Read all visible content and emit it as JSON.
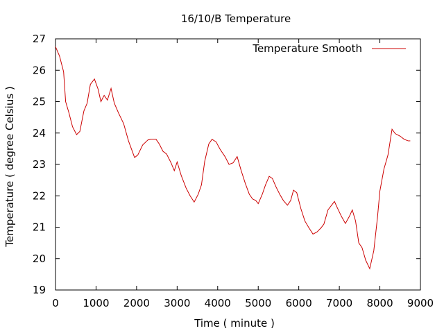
{
  "chart_data": {
    "type": "line",
    "title": "16/10/B Temperature",
    "xlabel": "Time ( minute )",
    "ylabel": "Temperature ( degree Celsius )",
    "xlim": [
      0,
      9000
    ],
    "ylim": [
      19,
      27
    ],
    "xticks": [
      0,
      1000,
      2000,
      3000,
      4000,
      5000,
      6000,
      7000,
      8000,
      9000
    ],
    "yticks": [
      19,
      20,
      21,
      22,
      23,
      24,
      25,
      26,
      27
    ],
    "grid": false,
    "legend_position": "top-right",
    "series": [
      {
        "name": "Temperature Smooth",
        "color": "#cc0000",
        "points": [
          [
            0,
            26.75
          ],
          [
            100,
            26.45
          ],
          [
            200,
            25.95
          ],
          [
            250,
            25.0
          ],
          [
            330,
            24.65
          ],
          [
            420,
            24.2
          ],
          [
            520,
            23.95
          ],
          [
            600,
            24.05
          ],
          [
            700,
            24.7
          ],
          [
            780,
            24.95
          ],
          [
            860,
            25.55
          ],
          [
            960,
            25.72
          ],
          [
            1050,
            25.4
          ],
          [
            1120,
            25.0
          ],
          [
            1200,
            25.2
          ],
          [
            1280,
            25.05
          ],
          [
            1370,
            25.42
          ],
          [
            1450,
            24.95
          ],
          [
            1550,
            24.65
          ],
          [
            1680,
            24.3
          ],
          [
            1800,
            23.75
          ],
          [
            1950,
            23.22
          ],
          [
            2030,
            23.3
          ],
          [
            2150,
            23.62
          ],
          [
            2280,
            23.78
          ],
          [
            2350,
            23.8
          ],
          [
            2480,
            23.8
          ],
          [
            2560,
            23.65
          ],
          [
            2650,
            23.42
          ],
          [
            2740,
            23.33
          ],
          [
            2850,
            23.05
          ],
          [
            2930,
            22.8
          ],
          [
            3000,
            23.08
          ],
          [
            3100,
            22.65
          ],
          [
            3220,
            22.25
          ],
          [
            3320,
            22.0
          ],
          [
            3420,
            21.8
          ],
          [
            3520,
            22.05
          ],
          [
            3600,
            22.35
          ],
          [
            3680,
            23.1
          ],
          [
            3780,
            23.65
          ],
          [
            3860,
            23.8
          ],
          [
            3960,
            23.72
          ],
          [
            4060,
            23.48
          ],
          [
            4180,
            23.25
          ],
          [
            4280,
            23.0
          ],
          [
            4380,
            23.05
          ],
          [
            4480,
            23.25
          ],
          [
            4580,
            22.8
          ],
          [
            4680,
            22.4
          ],
          [
            4780,
            22.05
          ],
          [
            4860,
            21.9
          ],
          [
            4940,
            21.85
          ],
          [
            5000,
            21.75
          ],
          [
            5100,
            22.05
          ],
          [
            5180,
            22.35
          ],
          [
            5270,
            22.62
          ],
          [
            5350,
            22.55
          ],
          [
            5440,
            22.28
          ],
          [
            5530,
            22.05
          ],
          [
            5620,
            21.85
          ],
          [
            5720,
            21.7
          ],
          [
            5800,
            21.85
          ],
          [
            5870,
            22.18
          ],
          [
            5950,
            22.1
          ],
          [
            6050,
            21.6
          ],
          [
            6150,
            21.2
          ],
          [
            6250,
            20.98
          ],
          [
            6350,
            20.78
          ],
          [
            6450,
            20.85
          ],
          [
            6550,
            20.98
          ],
          [
            6620,
            21.1
          ],
          [
            6720,
            21.55
          ],
          [
            6820,
            21.72
          ],
          [
            6880,
            21.82
          ],
          [
            6950,
            21.62
          ],
          [
            7050,
            21.35
          ],
          [
            7150,
            21.12
          ],
          [
            7250,
            21.35
          ],
          [
            7320,
            21.55
          ],
          [
            7400,
            21.2
          ],
          [
            7480,
            20.5
          ],
          [
            7560,
            20.35
          ],
          [
            7650,
            19.95
          ],
          [
            7750,
            19.68
          ],
          [
            7850,
            20.25
          ],
          [
            7940,
            21.3
          ],
          [
            8000,
            22.15
          ],
          [
            8100,
            22.85
          ],
          [
            8200,
            23.3
          ],
          [
            8300,
            24.12
          ],
          [
            8380,
            23.98
          ],
          [
            8500,
            23.9
          ],
          [
            8600,
            23.8
          ],
          [
            8700,
            23.75
          ],
          [
            8750,
            23.75
          ]
        ]
      }
    ]
  }
}
